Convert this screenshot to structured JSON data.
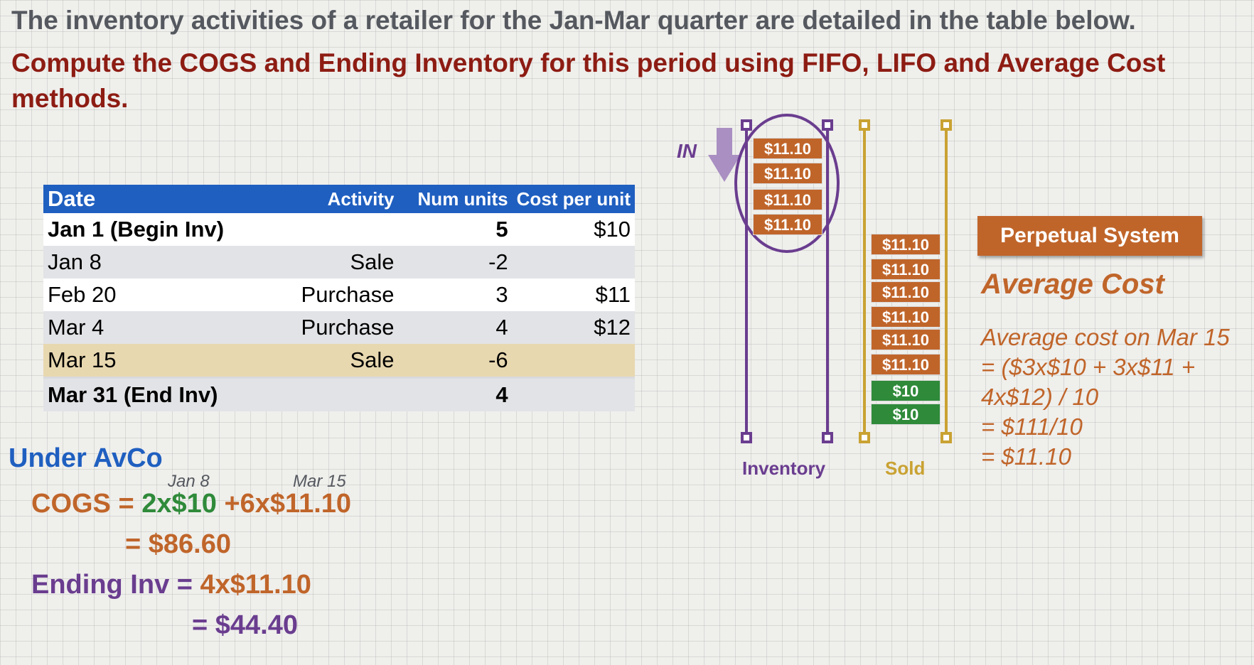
{
  "headline": "The inventory activities of a retailer for the Jan-Mar quarter are detailed in the table below.",
  "task": "Compute the COGS and Ending Inventory for this period using FIFO, LIFO and Average Cost methods.",
  "table": {
    "headers": {
      "date": "Date",
      "activity": "Activity",
      "num_units": "Num units",
      "cost_per_unit": "Cost per unit"
    },
    "rows": [
      {
        "date": "Jan 1 (Begin Inv)",
        "activity": "",
        "units": "5",
        "cost": "$10"
      },
      {
        "date": "Jan 8",
        "activity": "Sale",
        "units": "-2",
        "cost": ""
      },
      {
        "date": "Feb 20",
        "activity": "Purchase",
        "units": "3",
        "cost": "$11"
      },
      {
        "date": "Mar 4",
        "activity": "Purchase",
        "units": "4",
        "cost": "$12"
      },
      {
        "date": "Mar 15",
        "activity": "Sale",
        "units": "-6",
        "cost": ""
      },
      {
        "date": "Mar 31 (End Inv)",
        "activity": "",
        "units": "4",
        "cost": ""
      }
    ]
  },
  "diagram": {
    "in_label": "IN",
    "inventory_label": "Inventory",
    "sold_label": "Sold",
    "inventory_blocks": [
      "$11.10",
      "$11.10",
      "$11.10",
      "$11.10"
    ],
    "sold_blocks": [
      "$11.10",
      "$11.10",
      "$11.10",
      "$11.10",
      "$11.10",
      "$11.10",
      "$10",
      "$10"
    ],
    "colors": {
      "purple": "#6a3d8f",
      "gold": "#c9a232",
      "orange": "#c0652a",
      "green": "#2f8a3a",
      "arrow": "#a98fc2"
    }
  },
  "side": {
    "perpetual": "Perpetual System",
    "method": "Average Cost",
    "calc_lines": [
      "Average cost on Mar 15",
      "= ($3x$10 + 3x$11 +",
      "4x$12) / 10",
      "= $111/10",
      "= $11.10"
    ]
  },
  "avco": {
    "title": "Under AvCo",
    "jan8": "Jan 8",
    "mar15": "Mar 15",
    "cogs_label": "COGS =",
    "cogs_term1": "2x$10",
    "cogs_plus": "+",
    "cogs_term2": "6x$11.10",
    "cogs_result": "= $86.60",
    "endinv_label": "Ending Inv =",
    "endinv_term": "4x$11.10",
    "endinv_result": "= $44.40"
  }
}
